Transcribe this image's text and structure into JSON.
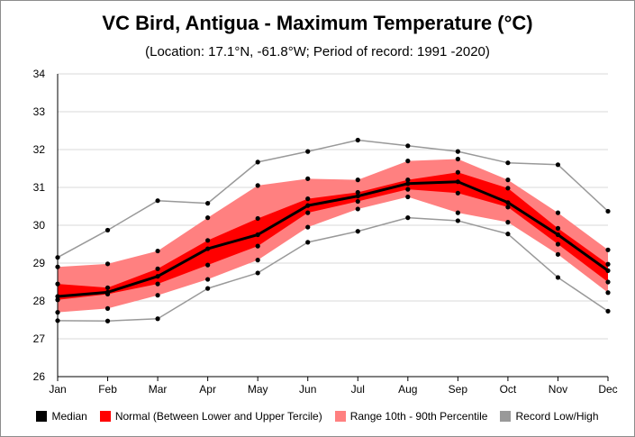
{
  "title": "VC Bird, Antigua - Maximum Temperature (°C)",
  "subtitle": "(Location: 17.1°N, -61.8°W; Period of record: 1991 -2020)",
  "colors": {
    "median": "#000000",
    "normal": "#ff0000",
    "range": "#ff8080",
    "record": "#999999",
    "grid": "#d9d9d9"
  },
  "legend": [
    {
      "key": "median",
      "label": "Median"
    },
    {
      "key": "normal",
      "label": "Normal (Between Lower and Upper Tercile)"
    },
    {
      "key": "range",
      "label": "Range 10th - 90th Percentile"
    },
    {
      "key": "record",
      "label": "Record Low/High"
    }
  ],
  "chart_data": {
    "type": "line",
    "title": "VC Bird, Antigua - Maximum Temperature (°C)",
    "subtitle": "(Location: 17.1°N, -61.8°W; Period of record: 1991 -2020)",
    "xlabel": "",
    "ylabel": "",
    "categories": [
      "Jan",
      "Feb",
      "Mar",
      "Apr",
      "May",
      "Jun",
      "Jul",
      "Aug",
      "Sep",
      "Oct",
      "Nov",
      "Dec"
    ],
    "ylim": [
      26,
      34
    ],
    "yticks": [
      26,
      27,
      28,
      29,
      30,
      31,
      32,
      33,
      34
    ],
    "grid": "horizontal",
    "legend_position": "bottom",
    "series": [
      {
        "name": "Median",
        "values": [
          28.12,
          28.23,
          28.65,
          29.38,
          29.75,
          30.52,
          30.77,
          31.1,
          31.15,
          30.6,
          29.75,
          28.8
        ]
      },
      {
        "name": "Lower Tercile",
        "values": [
          28.03,
          28.18,
          28.45,
          28.95,
          29.45,
          30.33,
          30.63,
          30.95,
          30.85,
          30.48,
          29.5,
          28.5
        ]
      },
      {
        "name": "Upper Tercile",
        "values": [
          28.45,
          28.35,
          28.85,
          29.6,
          30.18,
          30.7,
          30.87,
          31.2,
          31.4,
          30.98,
          29.92,
          28.97
        ]
      },
      {
        "name": "10th Percentile",
        "values": [
          27.7,
          27.8,
          28.15,
          28.57,
          29.08,
          29.95,
          30.43,
          30.75,
          30.33,
          30.08,
          29.23,
          28.22
        ]
      },
      {
        "name": "90th Percentile",
        "values": [
          28.9,
          28.98,
          29.32,
          30.2,
          31.05,
          31.23,
          31.2,
          31.7,
          31.75,
          31.2,
          30.33,
          29.35
        ]
      },
      {
        "name": "Record Low",
        "values": [
          27.48,
          27.47,
          27.53,
          28.33,
          28.74,
          29.55,
          29.84,
          30.2,
          30.12,
          29.77,
          28.62,
          27.73
        ]
      },
      {
        "name": "Record High",
        "values": [
          29.15,
          29.87,
          30.65,
          30.58,
          31.67,
          31.95,
          32.25,
          32.1,
          31.95,
          31.65,
          31.6,
          30.37
        ]
      }
    ]
  }
}
